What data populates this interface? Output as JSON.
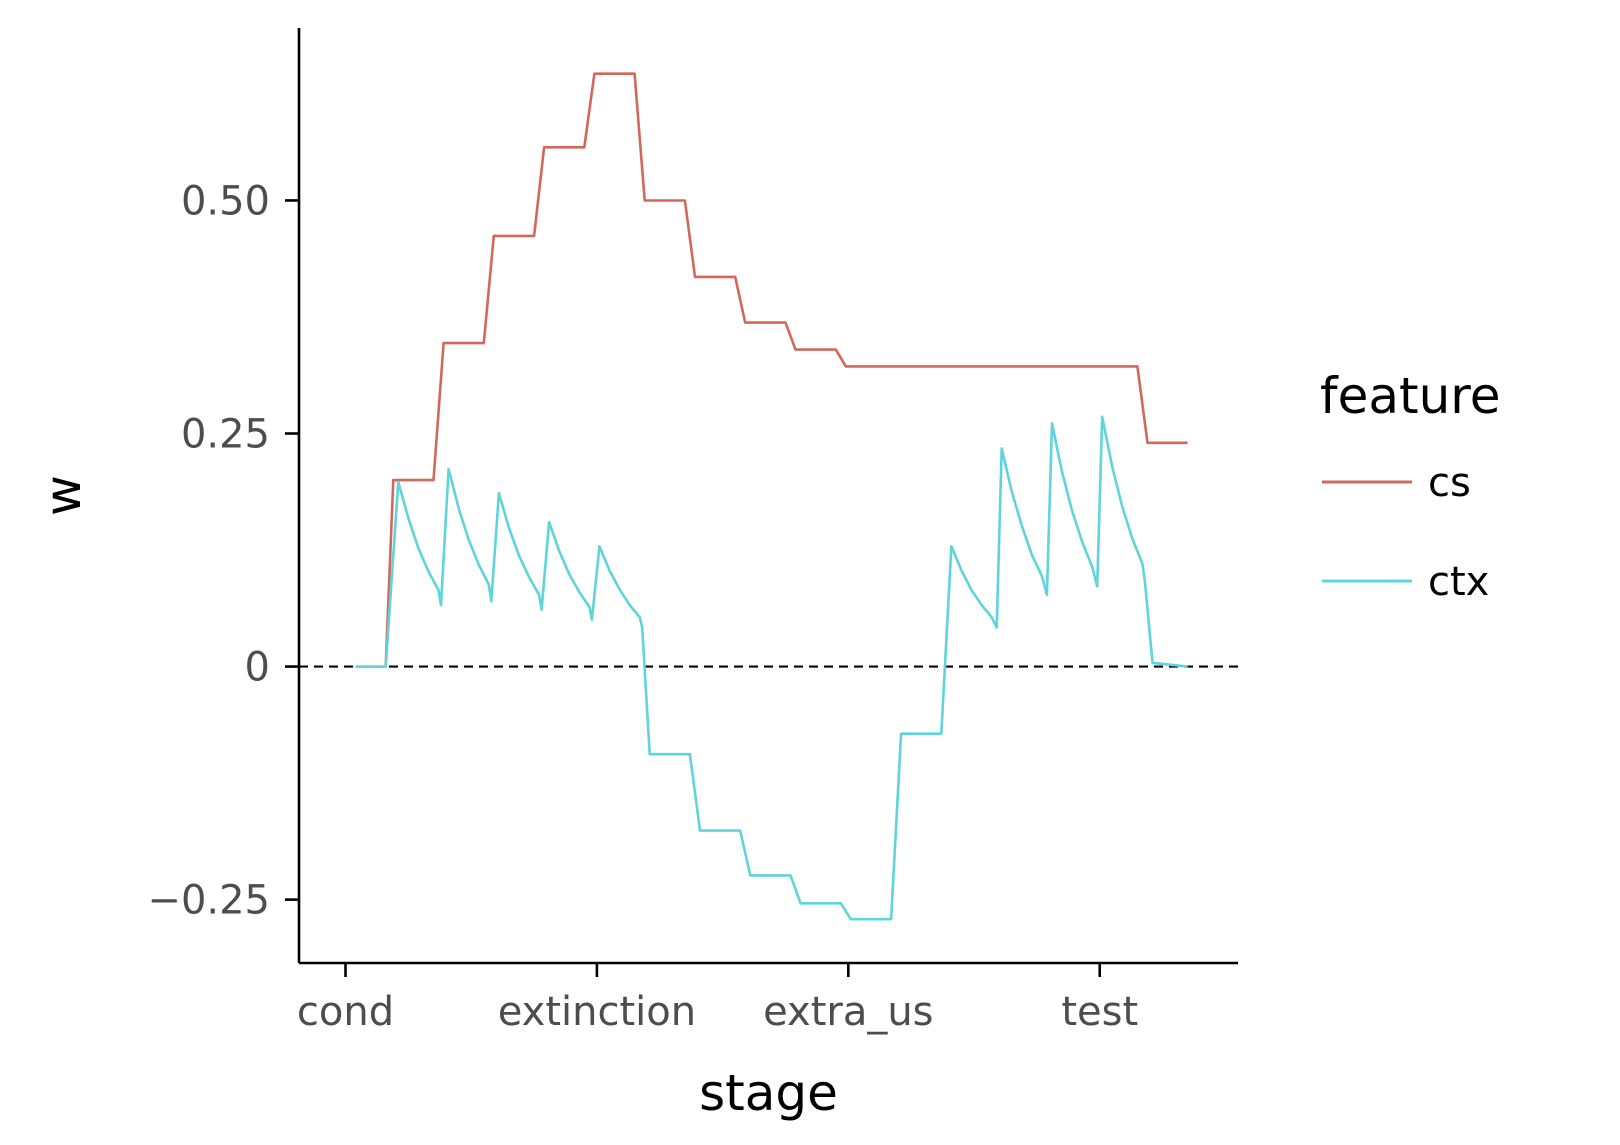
{
  "chart_data": {
    "type": "line",
    "xlabel": "stage",
    "ylabel": "w",
    "x_categories": [
      "cond",
      "extinction",
      "extra_us",
      "test"
    ],
    "xlim": [
      -0.185,
      3.55
    ],
    "ylim": [
      -0.318,
      0.685
    ],
    "y_ticks": [
      -0.25,
      0,
      0.25,
      0.5
    ],
    "y_tick_labels": [
      "−0.25",
      "0",
      "0.25",
      "0.50"
    ],
    "reference_line": {
      "y": 0,
      "style": "dashed",
      "color": "#000000"
    },
    "legend": {
      "title": "feature",
      "position": "right"
    },
    "grid": false,
    "series": [
      {
        "name": "cs",
        "color": "#d2685c",
        "points": [
          [
            0.16,
            0.0
          ],
          [
            0.19,
            0.2
          ],
          [
            0.35,
            0.2
          ],
          [
            0.39,
            0.347
          ],
          [
            0.55,
            0.347
          ],
          [
            0.59,
            0.462
          ],
          [
            0.75,
            0.462
          ],
          [
            0.79,
            0.557
          ],
          [
            0.95,
            0.557
          ],
          [
            0.99,
            0.636
          ],
          [
            1.15,
            0.636
          ],
          [
            1.19,
            0.5
          ],
          [
            1.35,
            0.5
          ],
          [
            1.39,
            0.418
          ],
          [
            1.55,
            0.418
          ],
          [
            1.59,
            0.369
          ],
          [
            1.75,
            0.369
          ],
          [
            1.79,
            0.34
          ],
          [
            1.95,
            0.34
          ],
          [
            1.99,
            0.322
          ],
          [
            3.15,
            0.322
          ],
          [
            3.19,
            0.24
          ],
          [
            3.35,
            0.24
          ]
        ]
      },
      {
        "name": "ctx",
        "color": "#5fd4db",
        "points": [
          [
            0.04,
            0.0
          ],
          [
            0.16,
            0.0
          ],
          [
            0.21,
            0.198
          ],
          [
            0.25,
            0.159
          ],
          [
            0.29,
            0.127
          ],
          [
            0.33,
            0.102
          ],
          [
            0.37,
            0.082
          ],
          [
            0.38,
            0.066
          ],
          [
            0.41,
            0.212
          ],
          [
            0.45,
            0.17
          ],
          [
            0.49,
            0.136
          ],
          [
            0.53,
            0.109
          ],
          [
            0.57,
            0.088
          ],
          [
            0.58,
            0.07
          ],
          [
            0.61,
            0.186
          ],
          [
            0.65,
            0.149
          ],
          [
            0.69,
            0.119
          ],
          [
            0.73,
            0.096
          ],
          [
            0.77,
            0.077
          ],
          [
            0.78,
            0.061
          ],
          [
            0.81,
            0.155
          ],
          [
            0.85,
            0.124
          ],
          [
            0.89,
            0.099
          ],
          [
            0.93,
            0.08
          ],
          [
            0.97,
            0.064
          ],
          [
            0.98,
            0.05
          ],
          [
            1.01,
            0.129
          ],
          [
            1.05,
            0.103
          ],
          [
            1.09,
            0.083
          ],
          [
            1.13,
            0.066
          ],
          [
            1.17,
            0.053
          ],
          [
            1.18,
            0.042
          ],
          [
            1.21,
            -0.094
          ],
          [
            1.37,
            -0.094
          ],
          [
            1.41,
            -0.176
          ],
          [
            1.57,
            -0.176
          ],
          [
            1.61,
            -0.224
          ],
          [
            1.77,
            -0.224
          ],
          [
            1.81,
            -0.254
          ],
          [
            1.97,
            -0.254
          ],
          [
            2.01,
            -0.271
          ],
          [
            2.17,
            -0.271
          ],
          [
            2.21,
            -0.072
          ],
          [
            2.37,
            -0.072
          ],
          [
            2.41,
            0.129
          ],
          [
            2.45,
            0.103
          ],
          [
            2.49,
            0.082
          ],
          [
            2.53,
            0.066
          ],
          [
            2.57,
            0.053
          ],
          [
            2.59,
            0.042
          ],
          [
            2.61,
            0.234
          ],
          [
            2.65,
            0.188
          ],
          [
            2.69,
            0.151
          ],
          [
            2.73,
            0.12
          ],
          [
            2.77,
            0.097
          ],
          [
            2.79,
            0.077
          ],
          [
            2.81,
            0.261
          ],
          [
            2.85,
            0.209
          ],
          [
            2.89,
            0.167
          ],
          [
            2.93,
            0.134
          ],
          [
            2.97,
            0.107
          ],
          [
            2.99,
            0.086
          ],
          [
            3.01,
            0.268
          ],
          [
            3.05,
            0.214
          ],
          [
            3.09,
            0.171
          ],
          [
            3.13,
            0.137
          ],
          [
            3.17,
            0.11
          ],
          [
            3.18,
            0.09
          ],
          [
            3.21,
            0.004
          ],
          [
            3.35,
            0.0
          ]
        ]
      }
    ]
  }
}
